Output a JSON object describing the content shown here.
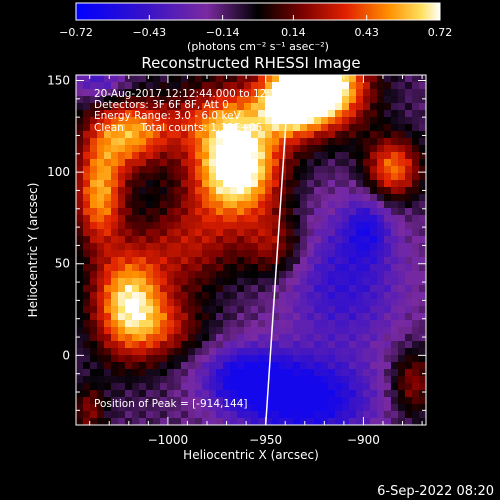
{
  "chart_data": {
    "type": "heatmap",
    "title": "Reconstructed RHESSI Image",
    "xlabel": "Heliocentric X (arcsec)",
    "ylabel": "Heliocentric Y (arcsec)",
    "xlim": [
      -1047,
      -868
    ],
    "ylim": [
      -38,
      153
    ],
    "xticks": [
      -1000,
      -950,
      -900
    ],
    "yticks": [
      0,
      50,
      100,
      150
    ],
    "colorbar": {
      "label": "(photons cm⁻² s⁻¹ asec⁻²)",
      "range": [
        -0.72,
        0.72
      ],
      "ticks": [
        -0.72,
        -0.43,
        -0.14,
        0.14,
        0.43,
        0.72
      ],
      "tick_labels": [
        "−0.72",
        "−0.43",
        "−0.14",
        "0.14",
        "0.43",
        "0.72"
      ],
      "colormap": [
        [
          0.0,
          "#0000ff"
        ],
        [
          0.18,
          "#3311cc"
        ],
        [
          0.36,
          "#7a2aa0"
        ],
        [
          0.5,
          "#000000"
        ],
        [
          0.62,
          "#7a0000"
        ],
        [
          0.74,
          "#e02000"
        ],
        [
          0.86,
          "#ff9000"
        ],
        [
          0.95,
          "#ffe060"
        ],
        [
          1.0,
          "#ffffff"
        ]
      ]
    },
    "annotations": [
      "20-Aug-2017 12:12:44.000 to 12:13:44.000",
      "Detectors: 3F 6F 8F, Att 0",
      "Energy Range: 3.0 - 6.0 keV",
      "Clean     Total counts: 1.32E+05"
    ],
    "peak_label": "Position of Peak = [-914,144]",
    "peak": [
      -914,
      144
    ],
    "limb_line": [
      [
        -950,
        -38
      ],
      [
        -938,
        153
      ]
    ],
    "sources": [
      {
        "x": -965,
        "y": 103,
        "sx": 16,
        "sy": 20,
        "a": 1.0
      },
      {
        "x": -922,
        "y": 147,
        "sx": 16,
        "sy": 16,
        "a": 1.1
      },
      {
        "x": -938,
        "y": 138,
        "sx": 10,
        "sy": 12,
        "a": 0.55
      },
      {
        "x": -1020,
        "y": 28,
        "sx": 13,
        "sy": 20,
        "a": 0.78
      },
      {
        "x": -1035,
        "y": 88,
        "sx": 9,
        "sy": 20,
        "a": 0.65
      },
      {
        "x": -1020,
        "y": 120,
        "sx": 14,
        "sy": 14,
        "a": 0.55
      },
      {
        "x": -985,
        "y": 135,
        "sx": 30,
        "sy": 14,
        "a": 0.45
      },
      {
        "x": -990,
        "y": 60,
        "sx": 18,
        "sy": 18,
        "a": 0.35
      },
      {
        "x": -945,
        "y": 60,
        "sx": 11,
        "sy": 13,
        "a": 0.35
      },
      {
        "x": -885,
        "y": 102,
        "sx": 10,
        "sy": 12,
        "a": 0.6
      },
      {
        "x": -875,
        "y": -15,
        "sx": 8,
        "sy": 13,
        "a": 0.35
      },
      {
        "x": -1000,
        "y": 15,
        "sx": 14,
        "sy": 12,
        "a": 0.3
      },
      {
        "x": -1040,
        "y": -30,
        "sx": 6,
        "sy": 10,
        "a": 0.3
      }
    ],
    "negatives": [
      {
        "x": -930,
        "y": -25,
        "sx": 24,
        "sy": 16,
        "a": 0.55
      },
      {
        "x": -960,
        "y": -12,
        "sx": 16,
        "sy": 12,
        "a": 0.45
      },
      {
        "x": -910,
        "y": 40,
        "sx": 22,
        "sy": 28,
        "a": 0.35
      },
      {
        "x": -1000,
        "y": 140,
        "sx": 22,
        "sy": 10,
        "a": 0.25
      },
      {
        "x": -1035,
        "y": 150,
        "sx": 10,
        "sy": 8,
        "a": 0.3
      },
      {
        "x": -898,
        "y": 70,
        "sx": 8,
        "sy": 12,
        "a": 0.3
      }
    ]
  },
  "footer": {
    "date": "6-Sep-2022 08:20"
  }
}
